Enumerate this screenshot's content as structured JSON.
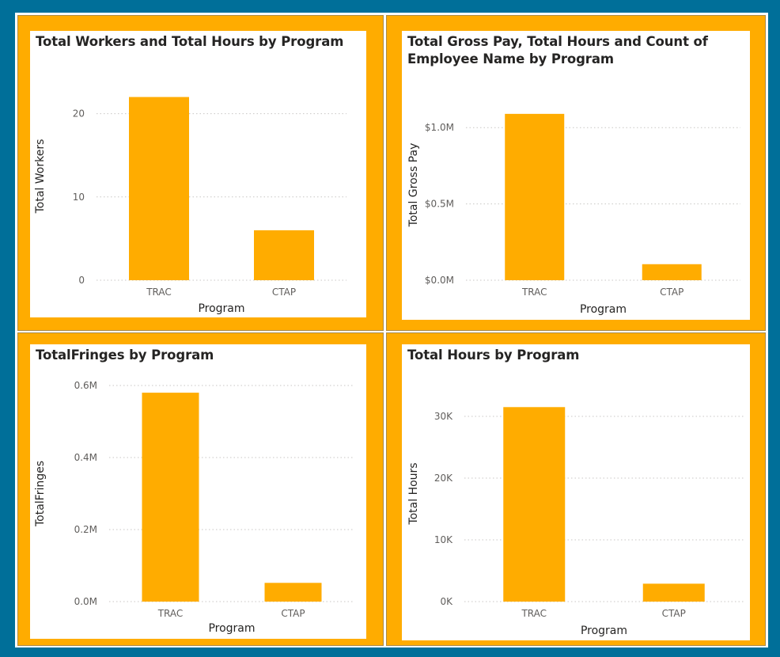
{
  "colors": {
    "background": "#006f99",
    "panel": "#ffac00",
    "bar": "#ffac00"
  },
  "chart_data": [
    {
      "type": "bar",
      "title": "Total Workers and Total Hours by Program",
      "xlabel": "Program",
      "ylabel": "Total Workers",
      "categories": [
        "TRAC",
        "CTAP"
      ],
      "values": [
        22,
        6
      ],
      "ylim": [
        0,
        25
      ],
      "yticks": [
        0,
        10,
        20
      ],
      "ytick_labels": [
        "0",
        "10",
        "20"
      ],
      "grid": true,
      "legend": "none"
    },
    {
      "type": "bar",
      "title": "Total Gross Pay, Total Hours and Count of Employee Name by Program",
      "xlabel": "Program",
      "ylabel": "Total Gross Pay",
      "categories": [
        "TRAC",
        "CTAP"
      ],
      "values": [
        1090000,
        105000
      ],
      "ylim": [
        0,
        1250000
      ],
      "yticks": [
        0,
        500000,
        1000000
      ],
      "ytick_labels": [
        "$0.0M",
        "$0.5M",
        "$1.0M"
      ],
      "grid": true,
      "legend": "none"
    },
    {
      "type": "bar",
      "title": "TotalFringes by Program",
      "xlabel": "Program",
      "ylabel": "TotalFringes",
      "categories": [
        "TRAC",
        "CTAP"
      ],
      "values": [
        580000,
        52000
      ],
      "ylim": [
        0,
        600000
      ],
      "yticks": [
        0,
        200000,
        400000,
        600000
      ],
      "ytick_labels": [
        "0.0M",
        "0.2M",
        "0.4M",
        "0.6M"
      ],
      "grid": true,
      "legend": "none"
    },
    {
      "type": "bar",
      "title": "Total Hours by Program",
      "xlabel": "Program",
      "ylabel": "Total Hours",
      "categories": [
        "TRAC",
        "CTAP"
      ],
      "values": [
        31500,
        2900
      ],
      "ylim": [
        0,
        35000
      ],
      "yticks": [
        0,
        10000,
        20000,
        30000
      ],
      "ytick_labels": [
        "0K",
        "10K",
        "20K",
        "30K"
      ],
      "grid": true,
      "legend": "none"
    }
  ]
}
